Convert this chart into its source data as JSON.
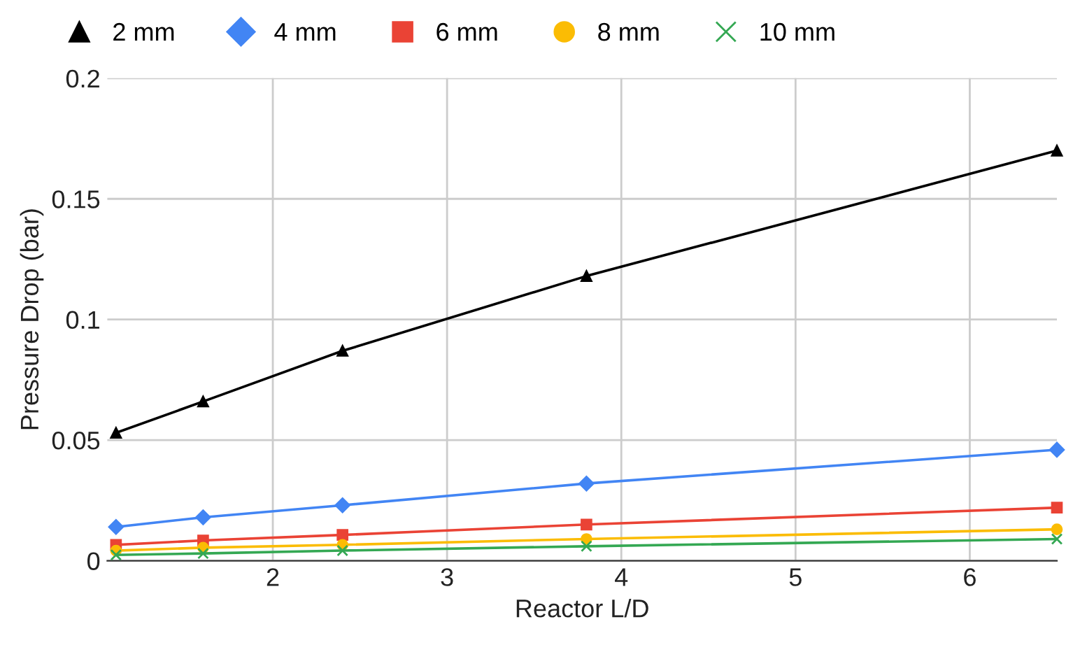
{
  "chart_data": {
    "type": "line",
    "xlabel": "Reactor L/D",
    "ylabel": "Pressure Drop (bar)",
    "x": [
      1.1,
      1.6,
      2.4,
      3.8,
      6.5
    ],
    "xlim": [
      1.05,
      6.5
    ],
    "xticks": [
      2,
      3,
      4,
      5,
      6
    ],
    "ylim": [
      0,
      0.2
    ],
    "yticks": [
      0,
      0.05,
      0.1,
      0.15,
      0.2
    ],
    "grid": true,
    "legend": "top",
    "series": [
      {
        "name": "2 mm",
        "color": "#000000",
        "marker": "triangle",
        "values": [
          0.053,
          0.066,
          0.087,
          0.118,
          0.17
        ]
      },
      {
        "name": "4 mm",
        "color": "#4285f4",
        "marker": "diamond",
        "values": [
          0.014,
          0.018,
          0.023,
          0.032,
          0.046
        ]
      },
      {
        "name": "6 mm",
        "color": "#ea4335",
        "marker": "square",
        "values": [
          0.0066,
          0.0084,
          0.0107,
          0.015,
          0.022
        ]
      },
      {
        "name": "8 mm",
        "color": "#fbbc04",
        "marker": "circle",
        "values": [
          0.0042,
          0.0054,
          0.0066,
          0.009,
          0.013
        ]
      },
      {
        "name": "10 mm",
        "color": "#34a853",
        "marker": "cross",
        "values": [
          0.0024,
          0.003,
          0.0042,
          0.006,
          0.009
        ]
      }
    ]
  }
}
